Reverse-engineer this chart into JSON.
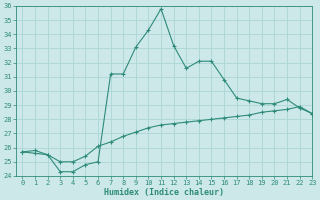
{
  "xlabel": "Humidex (Indice chaleur)",
  "ylabel": "",
  "x": [
    0,
    1,
    2,
    3,
    4,
    5,
    6,
    7,
    8,
    9,
    10,
    11,
    12,
    13,
    14,
    15,
    16,
    17,
    18,
    19,
    20,
    21,
    22,
    23
  ],
  "line1_y": [
    25.7,
    25.6,
    25.5,
    24.3,
    24.3,
    24.8,
    25.0,
    31.2,
    31.2,
    33.1,
    34.3,
    35.8,
    33.2,
    31.6,
    32.1,
    32.1,
    30.8,
    29.5,
    29.3,
    29.1,
    29.1,
    29.4,
    28.8,
    28.4
  ],
  "line2_y": [
    25.7,
    25.8,
    25.5,
    25.0,
    25.0,
    25.4,
    26.1,
    26.4,
    26.8,
    27.1,
    27.4,
    27.6,
    27.7,
    27.8,
    27.9,
    28.0,
    28.1,
    28.2,
    28.3,
    28.5,
    28.6,
    28.7,
    28.9,
    28.4
  ],
  "line_color": "#2e8b7a",
  "bg_color": "#cce8e8",
  "grid_color": "#b0d8d8",
  "ylim": [
    24,
    36
  ],
  "xlim": [
    -0.5,
    23
  ],
  "yticks": [
    24,
    25,
    26,
    27,
    28,
    29,
    30,
    31,
    32,
    33,
    34,
    35,
    36
  ],
  "xticks": [
    0,
    1,
    2,
    3,
    4,
    5,
    6,
    7,
    8,
    9,
    10,
    11,
    12,
    13,
    14,
    15,
    16,
    17,
    18,
    19,
    20,
    21,
    22,
    23
  ],
  "tick_fontsize": 5,
  "xlabel_fontsize": 6
}
